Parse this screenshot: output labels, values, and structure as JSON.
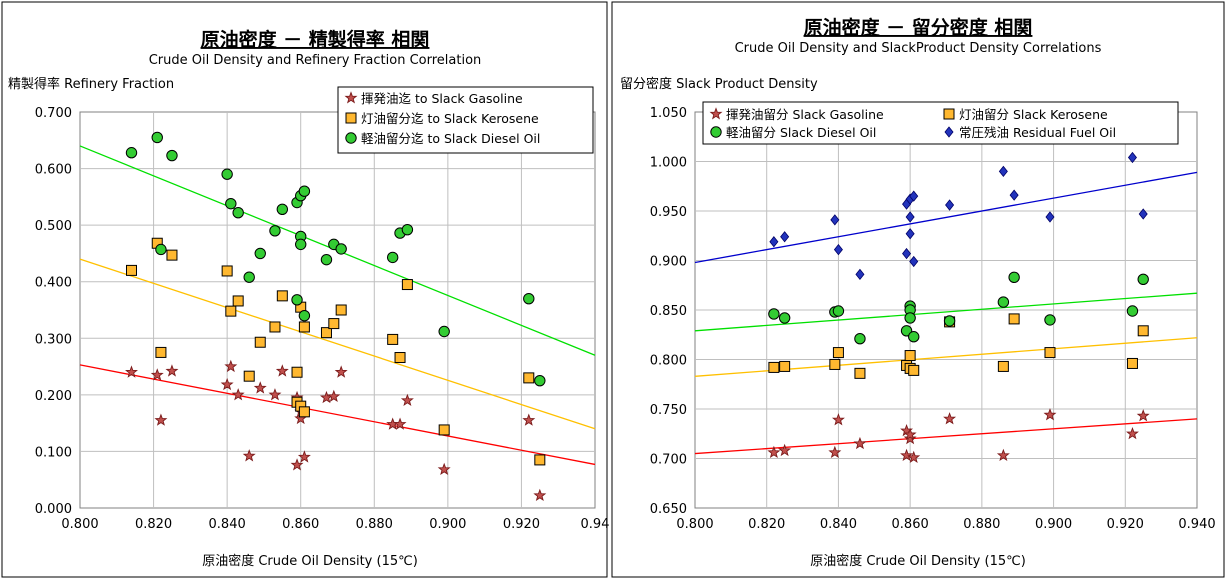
{
  "chart_data": [
    {
      "type": "scatter",
      "title": "原油密度 － 精製得率 相関",
      "subtitle": "Crude Oil Density and Refinery Fraction Correlation",
      "ylabel": "精製得率 Refinery Fraction",
      "xlabel": "原油密度 Crude Oil Density (15℃)",
      "xlim": [
        0.8,
        0.94
      ],
      "ylim": [
        0.0,
        0.7
      ],
      "x_ticks": [
        "0.800",
        "0.820",
        "0.840",
        "0.860",
        "0.880",
        "0.900",
        "0.920",
        "0.94"
      ],
      "y_ticks": [
        "0.000",
        "0.100",
        "0.200",
        "0.300",
        "0.400",
        "0.500",
        "0.600",
        "0.700"
      ],
      "grid": true,
      "legend_position": "top-right",
      "series": [
        {
          "name": "揮発油迄 to Slack Gasoline",
          "marker": "star",
          "color": "#7a1a1a",
          "fill": "#c0504d",
          "points": [
            [
              0.814,
              0.24
            ],
            [
              0.821,
              0.235
            ],
            [
              0.822,
              0.155
            ],
            [
              0.825,
              0.242
            ],
            [
              0.84,
              0.218
            ],
            [
              0.841,
              0.25
            ],
            [
              0.843,
              0.2
            ],
            [
              0.846,
              0.092
            ],
            [
              0.849,
              0.212
            ],
            [
              0.853,
              0.2
            ],
            [
              0.855,
              0.242
            ],
            [
              0.859,
              0.076
            ],
            [
              0.859,
              0.195
            ],
            [
              0.86,
              0.158
            ],
            [
              0.86,
              0.17
            ],
            [
              0.861,
              0.09
            ],
            [
              0.867,
              0.195
            ],
            [
              0.869,
              0.197
            ],
            [
              0.871,
              0.24
            ],
            [
              0.885,
              0.148
            ],
            [
              0.887,
              0.148
            ],
            [
              0.889,
              0.19
            ],
            [
              0.899,
              0.068
            ],
            [
              0.922,
              0.155
            ],
            [
              0.925,
              0.022
            ]
          ],
          "trend": [
            [
              0.8,
              0.253
            ],
            [
              0.94,
              0.077
            ]
          ],
          "trend_color": "#ff0000"
        },
        {
          "name": "灯油留分迄 to Slack Kerosene",
          "marker": "square",
          "color": "#000000",
          "fill": "#ffb830",
          "points": [
            [
              0.814,
              0.42
            ],
            [
              0.821,
              0.468
            ],
            [
              0.822,
              0.275
            ],
            [
              0.825,
              0.447
            ],
            [
              0.84,
              0.419
            ],
            [
              0.841,
              0.348
            ],
            [
              0.843,
              0.366
            ],
            [
              0.846,
              0.233
            ],
            [
              0.849,
              0.293
            ],
            [
              0.853,
              0.32
            ],
            [
              0.855,
              0.375
            ],
            [
              0.859,
              0.24
            ],
            [
              0.859,
              0.187
            ],
            [
              0.86,
              0.18
            ],
            [
              0.86,
              0.355
            ],
            [
              0.861,
              0.17
            ],
            [
              0.861,
              0.32
            ],
            [
              0.867,
              0.31
            ],
            [
              0.869,
              0.326
            ],
            [
              0.871,
              0.35
            ],
            [
              0.885,
              0.298
            ],
            [
              0.887,
              0.266
            ],
            [
              0.889,
              0.395
            ],
            [
              0.899,
              0.138
            ],
            [
              0.922,
              0.23
            ],
            [
              0.925,
              0.085
            ]
          ],
          "trend": [
            [
              0.8,
              0.44
            ],
            [
              0.94,
              0.14
            ]
          ],
          "trend_color": "#ffc000"
        },
        {
          "name": "軽油留分迄 to Slack Diesel Oil",
          "marker": "circle",
          "color": "#000000",
          "fill": "#33cc33",
          "points": [
            [
              0.814,
              0.628
            ],
            [
              0.821,
              0.655
            ],
            [
              0.822,
              0.457
            ],
            [
              0.825,
              0.623
            ],
            [
              0.84,
              0.59
            ],
            [
              0.841,
              0.538
            ],
            [
              0.843,
              0.522
            ],
            [
              0.846,
              0.408
            ],
            [
              0.849,
              0.45
            ],
            [
              0.853,
              0.49
            ],
            [
              0.855,
              0.528
            ],
            [
              0.859,
              0.368
            ],
            [
              0.859,
              0.54
            ],
            [
              0.86,
              0.552
            ],
            [
              0.86,
              0.48
            ],
            [
              0.86,
              0.466
            ],
            [
              0.861,
              0.56
            ],
            [
              0.861,
              0.34
            ],
            [
              0.867,
              0.439
            ],
            [
              0.869,
              0.466
            ],
            [
              0.871,
              0.458
            ],
            [
              0.885,
              0.443
            ],
            [
              0.887,
              0.486
            ],
            [
              0.889,
              0.492
            ],
            [
              0.899,
              0.312
            ],
            [
              0.922,
              0.37
            ],
            [
              0.925,
              0.225
            ]
          ],
          "trend": [
            [
              0.8,
              0.64
            ],
            [
              0.94,
              0.27
            ]
          ],
          "trend_color": "#00e000"
        }
      ]
    },
    {
      "type": "scatter",
      "title": "原油密度 － 留分密度 相関",
      "subtitle": "Crude Oil Density and SlackProduct Density Correlations",
      "ylabel": "留分密度 Slack Product Density",
      "xlabel": "原油密度 Crude Oil Density (15℃)",
      "xlim": [
        0.8,
        0.94
      ],
      "ylim": [
        0.65,
        1.05
      ],
      "x_ticks": [
        "0.800",
        "0.820",
        "0.840",
        "0.860",
        "0.880",
        "0.900",
        "0.920",
        "0.940"
      ],
      "y_ticks": [
        "0.650",
        "0.700",
        "0.750",
        "0.800",
        "0.850",
        "0.900",
        "0.950",
        "1.000",
        "1.050"
      ],
      "grid": true,
      "legend_position": "top",
      "series": [
        {
          "name": "揮発油留分 Slack Gasoline",
          "marker": "star",
          "color": "#7a1a1a",
          "fill": "#c0504d",
          "points": [
            [
              0.822,
              0.706
            ],
            [
              0.825,
              0.708
            ],
            [
              0.839,
              0.706
            ],
            [
              0.84,
              0.739
            ],
            [
              0.846,
              0.715
            ],
            [
              0.859,
              0.728
            ],
            [
              0.859,
              0.703
            ],
            [
              0.86,
              0.72
            ],
            [
              0.86,
              0.724
            ],
            [
              0.861,
              0.701
            ],
            [
              0.871,
              0.74
            ],
            [
              0.886,
              0.703
            ],
            [
              0.899,
              0.744
            ],
            [
              0.922,
              0.725
            ],
            [
              0.925,
              0.743
            ]
          ],
          "trend": [
            [
              0.8,
              0.705
            ],
            [
              0.94,
              0.74
            ]
          ],
          "trend_color": "#ff0000"
        },
        {
          "name": "灯油留分 Slack Kerosene",
          "marker": "square",
          "color": "#000000",
          "fill": "#ffb830",
          "points": [
            [
              0.822,
              0.792
            ],
            [
              0.825,
              0.793
            ],
            [
              0.839,
              0.795
            ],
            [
              0.84,
              0.807
            ],
            [
              0.846,
              0.786
            ],
            [
              0.859,
              0.794
            ],
            [
              0.86,
              0.804
            ],
            [
              0.86,
              0.791
            ],
            [
              0.861,
              0.789
            ],
            [
              0.871,
              0.838
            ],
            [
              0.886,
              0.793
            ],
            [
              0.889,
              0.841
            ],
            [
              0.899,
              0.807
            ],
            [
              0.922,
              0.796
            ],
            [
              0.925,
              0.829
            ]
          ],
          "trend": [
            [
              0.8,
              0.783
            ],
            [
              0.94,
              0.822
            ]
          ],
          "trend_color": "#ffc000"
        },
        {
          "name": "軽油留分 Slack Diesel Oil",
          "marker": "circle",
          "color": "#000000",
          "fill": "#33cc33",
          "points": [
            [
              0.822,
              0.846
            ],
            [
              0.825,
              0.842
            ],
            [
              0.839,
              0.848
            ],
            [
              0.84,
              0.849
            ],
            [
              0.846,
              0.821
            ],
            [
              0.859,
              0.829
            ],
            [
              0.86,
              0.854
            ],
            [
              0.86,
              0.85
            ],
            [
              0.86,
              0.842
            ],
            [
              0.861,
              0.823
            ],
            [
              0.871,
              0.839
            ],
            [
              0.886,
              0.858
            ],
            [
              0.889,
              0.883
            ],
            [
              0.899,
              0.84
            ],
            [
              0.922,
              0.849
            ],
            [
              0.925,
              0.881
            ]
          ],
          "trend": [
            [
              0.8,
              0.829
            ],
            [
              0.94,
              0.867
            ]
          ],
          "trend_color": "#00e000"
        },
        {
          "name": "常圧残油 Residual Fuel Oil",
          "marker": "diamond",
          "color": "#000066",
          "fill": "#2233bb",
          "points": [
            [
              0.822,
              0.919
            ],
            [
              0.825,
              0.924
            ],
            [
              0.839,
              0.941
            ],
            [
              0.84,
              0.911
            ],
            [
              0.846,
              0.886
            ],
            [
              0.859,
              0.907
            ],
            [
              0.859,
              0.957
            ],
            [
              0.86,
              0.962
            ],
            [
              0.86,
              0.944
            ],
            [
              0.86,
              0.927
            ],
            [
              0.861,
              0.899
            ],
            [
              0.861,
              0.965
            ],
            [
              0.871,
              0.956
            ],
            [
              0.886,
              0.99
            ],
            [
              0.889,
              0.966
            ],
            [
              0.899,
              0.944
            ],
            [
              0.922,
              1.004
            ],
            [
              0.925,
              0.947
            ]
          ],
          "trend": [
            [
              0.8,
              0.898
            ],
            [
              0.94,
              0.989
            ]
          ],
          "trend_color": "#0000cc"
        }
      ]
    }
  ]
}
